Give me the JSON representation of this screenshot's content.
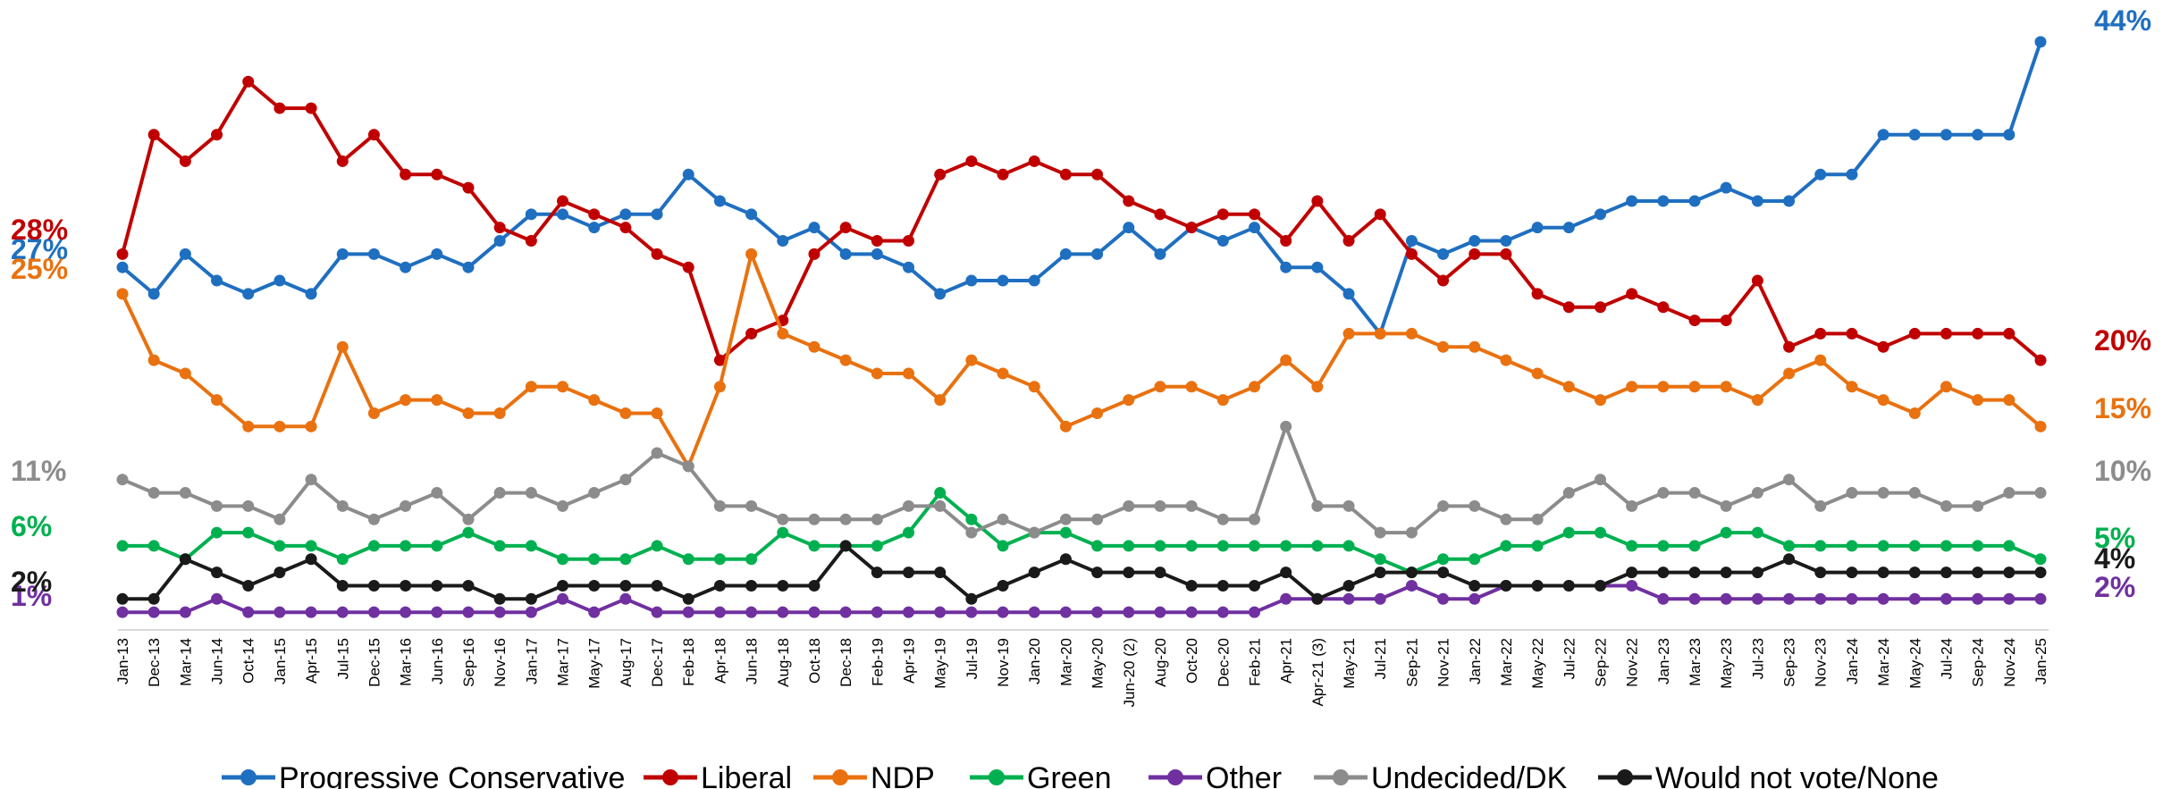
{
  "chart_data": {
    "type": "line",
    "x": [
      "Jan-13",
      "Dec-13",
      "Mar-14",
      "Jun-14",
      "Oct-14",
      "Jan-15",
      "Apr-15",
      "Jul-15",
      "Dec-15",
      "Mar-16",
      "Jun-16",
      "Sep-16",
      "Nov-16",
      "Jan-17",
      "Mar-17",
      "May-17",
      "Aug-17",
      "Dec-17",
      "Feb-18",
      "Apr-18",
      "Jun-18",
      "Aug-18",
      "Oct-18",
      "Dec-18",
      "Feb-19",
      "Apr-19",
      "May-19",
      "Jul-19",
      "Nov-19",
      "Jan-20",
      "Mar-20",
      "May-20",
      "Jun-20 (2)",
      "Aug-20",
      "Oct-20",
      "Dec-20",
      "Feb-21",
      "Apr-21",
      "Apr-21 (3)",
      "May-21",
      "Jul-21",
      "Sep-21",
      "Nov-21",
      "Jan-22",
      "Mar-22",
      "May-22",
      "Jul-22",
      "Sep-22",
      "Nov-22",
      "Jan-23",
      "Mar-23",
      "May-23",
      "Jul-23",
      "Sep-23",
      "Nov-23",
      "Jan-24",
      "Mar-24",
      "May-24",
      "Jul-24",
      "Sep-24",
      "Nov-24",
      "Jan-25"
    ],
    "ylim": [
      0,
      45
    ],
    "grid": false,
    "legend_position": "bottom",
    "series": [
      {
        "name": "Progressive Conservative",
        "color": "#1f6fc0",
        "start_label": "27%",
        "end_label": "44%",
        "values": [
          27,
          25,
          28,
          26,
          25,
          26,
          25,
          28,
          28,
          27,
          28,
          27,
          29,
          31,
          31,
          30,
          31,
          31,
          34,
          32,
          31,
          29,
          30,
          28,
          28,
          27,
          25,
          26,
          26,
          26,
          28,
          28,
          30,
          28,
          30,
          29,
          30,
          27,
          27,
          25,
          22,
          29,
          28,
          29,
          29,
          30,
          30,
          31,
          32,
          32,
          32,
          33,
          32,
          32,
          34,
          34,
          37,
          37,
          37,
          37,
          37,
          44
        ]
      },
      {
        "name": "Liberal",
        "color": "#c00000",
        "start_label": "28%",
        "end_label": "20%",
        "values": [
          28,
          37,
          35,
          37,
          41,
          39,
          39,
          35,
          37,
          34,
          34,
          33,
          30,
          29,
          32,
          31,
          30,
          28,
          27,
          20,
          22,
          23,
          28,
          30,
          29,
          29,
          34,
          35,
          34,
          35,
          34,
          34,
          32,
          31,
          30,
          31,
          31,
          29,
          32,
          29,
          31,
          28,
          26,
          28,
          28,
          25,
          24,
          24,
          25,
          24,
          23,
          23,
          26,
          21,
          22,
          22,
          21,
          22,
          22,
          22,
          22,
          20
        ]
      },
      {
        "name": "NDP",
        "color": "#e9710f",
        "start_label": "25%",
        "end_label": "15%",
        "values": [
          25,
          20,
          19,
          17,
          15,
          15,
          15,
          21,
          16,
          17,
          17,
          16,
          16,
          18,
          18,
          17,
          16,
          16,
          12,
          18,
          28,
          22,
          21,
          20,
          19,
          19,
          17,
          20,
          19,
          18,
          15,
          16,
          17,
          18,
          18,
          17,
          18,
          20,
          18,
          22,
          22,
          22,
          21,
          21,
          20,
          19,
          18,
          17,
          18,
          18,
          18,
          18,
          17,
          19,
          20,
          18,
          17,
          16,
          18,
          17,
          17,
          15
        ]
      },
      {
        "name": "Green",
        "color": "#00b050",
        "start_label": "6%",
        "end_label": "5%",
        "values": [
          6,
          6,
          5,
          7,
          7,
          6,
          6,
          5,
          6,
          6,
          6,
          7,
          6,
          6,
          5,
          5,
          5,
          6,
          5,
          5,
          5,
          7,
          6,
          6,
          6,
          7,
          10,
          8,
          6,
          7,
          7,
          6,
          6,
          6,
          6,
          6,
          6,
          6,
          6,
          6,
          5,
          4,
          5,
          5,
          6,
          6,
          7,
          7,
          6,
          6,
          6,
          7,
          7,
          6,
          6,
          6,
          6,
          6,
          6,
          6,
          6,
          5
        ]
      },
      {
        "name": "Other",
        "color": "#7030a0",
        "start_label": "1%",
        "end_label": "2%",
        "values": [
          1,
          1,
          1,
          2,
          1,
          1,
          1,
          1,
          1,
          1,
          1,
          1,
          1,
          1,
          2,
          1,
          2,
          1,
          1,
          1,
          1,
          1,
          1,
          1,
          1,
          1,
          1,
          1,
          1,
          1,
          1,
          1,
          1,
          1,
          1,
          1,
          1,
          2,
          2,
          2,
          2,
          3,
          2,
          2,
          3,
          3,
          3,
          3,
          3,
          2,
          2,
          2,
          2,
          2,
          2,
          2,
          2,
          2,
          2,
          2,
          2,
          2
        ]
      },
      {
        "name": "Undecided/DK",
        "color": "#8c8c8c",
        "start_label": "11%",
        "end_label": "10%",
        "values": [
          11,
          10,
          10,
          9,
          9,
          8,
          11,
          9,
          8,
          9,
          10,
          8,
          10,
          10,
          9,
          10,
          11,
          13,
          12,
          9,
          9,
          8,
          8,
          8,
          8,
          9,
          9,
          7,
          8,
          7,
          8,
          8,
          9,
          9,
          9,
          8,
          8,
          15,
          9,
          9,
          7,
          7,
          9,
          9,
          8,
          8,
          10,
          11,
          9,
          10,
          10,
          9,
          10,
          11,
          9,
          10,
          10,
          10,
          9,
          9,
          10,
          10
        ]
      },
      {
        "name": "Would not vote/None",
        "color": "#1a1a1a",
        "start_label": "2%",
        "end_label": "4%",
        "values": [
          2,
          2,
          5,
          4,
          3,
          4,
          5,
          3,
          3,
          3,
          3,
          3,
          2,
          2,
          3,
          3,
          3,
          3,
          2,
          3,
          3,
          3,
          3,
          6,
          4,
          4,
          4,
          2,
          3,
          4,
          5,
          4,
          4,
          4,
          3,
          3,
          3,
          4,
          2,
          3,
          4,
          4,
          4,
          3,
          3,
          3,
          3,
          3,
          4,
          4,
          4,
          4,
          4,
          5,
          4,
          4,
          4,
          4,
          4,
          4,
          4,
          4
        ]
      }
    ]
  }
}
